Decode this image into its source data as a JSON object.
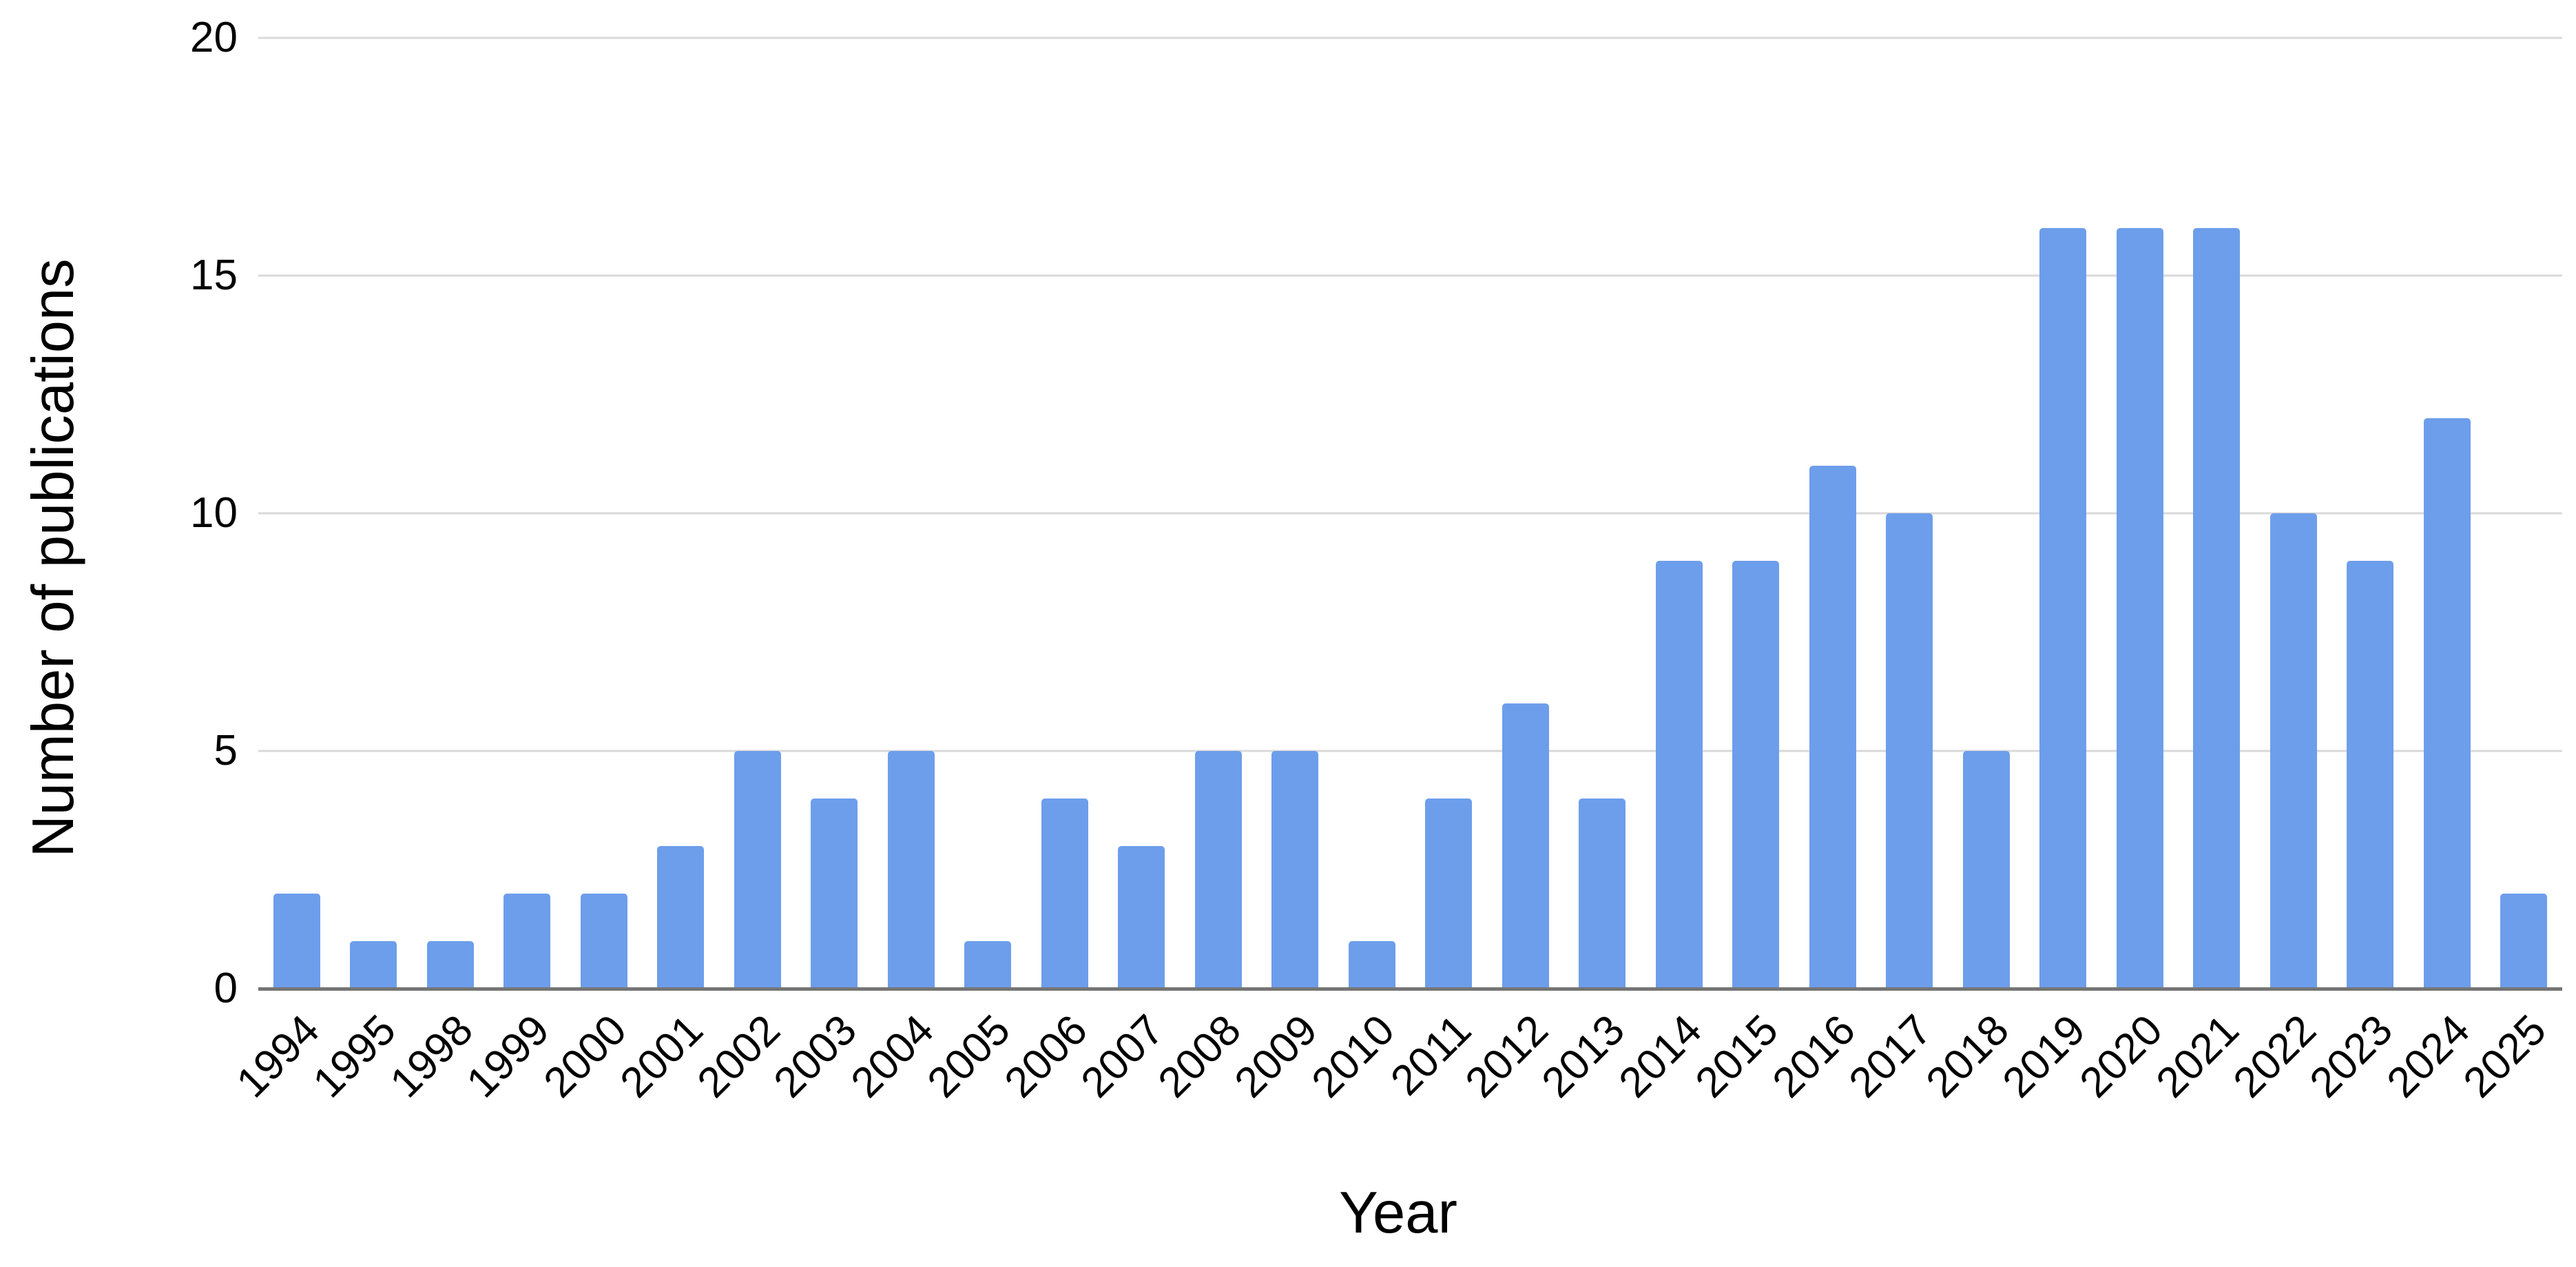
{
  "chart_data": {
    "type": "bar",
    "title": "",
    "categories": [
      "1994",
      "1995",
      "1998",
      "1999",
      "2000",
      "2001",
      "2002",
      "2003",
      "2004",
      "2005",
      "2006",
      "2007",
      "2008",
      "2009",
      "2010",
      "2011",
      "2012",
      "2013",
      "2014",
      "2015",
      "2016",
      "2017",
      "2018",
      "2019",
      "2020",
      "2021",
      "2022",
      "2023",
      "2024",
      "2025"
    ],
    "values": [
      2,
      1,
      1,
      2,
      2,
      3,
      5,
      4,
      5,
      1,
      4,
      3,
      5,
      5,
      1,
      4,
      6,
      4,
      9,
      9,
      11,
      10,
      5,
      16,
      16,
      16,
      10,
      9,
      12,
      2
    ],
    "xlabel": "Year",
    "ylabel": "Number of publications",
    "ylim": [
      0,
      20
    ],
    "yticks": [
      0,
      5,
      10,
      15,
      20
    ],
    "grid": true,
    "legend": "none",
    "colors": {
      "bar": "#6d9eeb",
      "gridline": "#d9d9d9",
      "axis_line": "#757575",
      "text": "#000000",
      "background": "#ffffff"
    }
  }
}
